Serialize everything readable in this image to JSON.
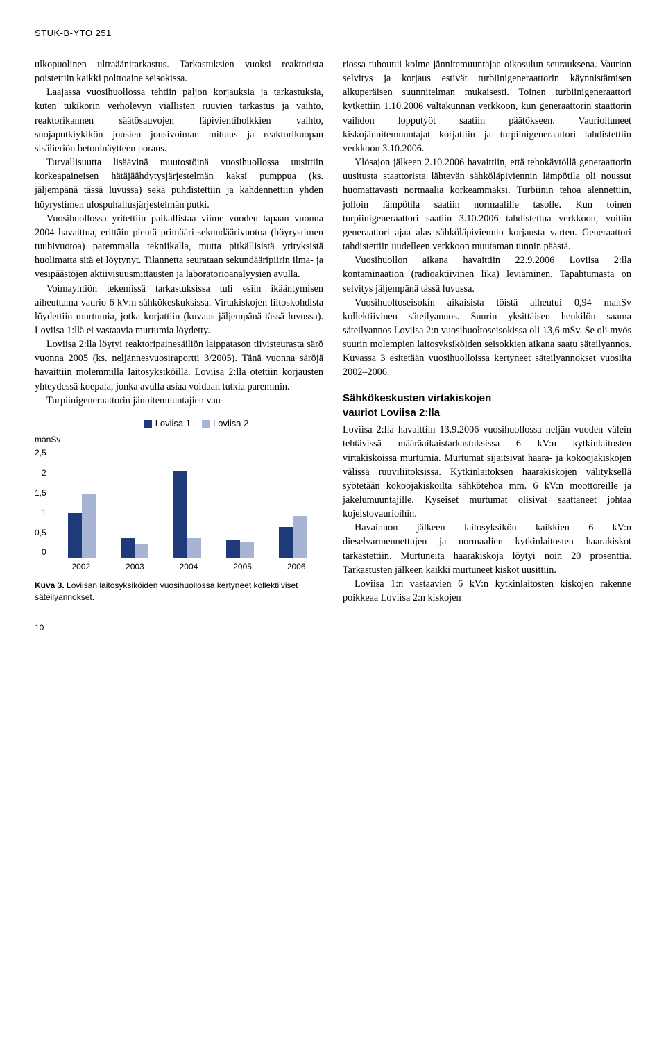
{
  "header_code": "STUK-B-YTO 251",
  "left_col": {
    "p1": "ulkopuolinen ultraäänitarkastus. Tarkastuksien vuoksi reaktorista poistettiin kaikki polttoaine seisokissa.",
    "p2": "Laajassa vuosihuollossa tehtiin paljon korjauksia ja tarkastuksia, kuten tukikorin verholevyn viallisten ruuvien tarkastus ja vaihto, reaktorikannen säätösauvojen läpivientiholkkien vaihto, suojaputkiykikön jousien jousivoiman mittaus ja reaktorikuopan sisälieriön betoninäytteen poraus.",
    "p3": "Turvallisuutta lisäävinä muutostöinä vuosihuollossa uusittiin korkeapaineisen hätäjäähdytysjärjestelmän kaksi pumppua (ks. jäljempänä tässä luvussa) sekä puhdistettiin ja kahdennettiin yhden höyrystimen ulospuhallusjärjestelmän putki.",
    "p4": "Vuosihuollossa yritettiin paikallistaa viime vuoden tapaan vuonna 2004 havaittua, erittäin pientä primääri-sekundäärivuotoa (höyrystimen tuubivuotoa) paremmalla tekniikalla, mutta pitkällisistä yrityksistä huolimatta sitä ei löytynyt. Tilannetta seurataan sekundääripiirin ilma- ja vesipäästöjen aktiivisuusmittausten ja laboratorioanalyysien avulla.",
    "p5": "Voimayhtiön tekemissä tarkastuksissa tuli esiin ikääntymisen aiheuttama vaurio 6 kV:n sähkökeskuksissa. Virtakiskojen liitoskohdista löydettiin murtumia, jotka korjattiin (kuvaus jäljempänä tässä luvussa). Loviisa 1:llä ei vastaavia murtumia löydetty.",
    "p6": "Loviisa 2:lla löytyi reaktoripainesäiliön laippatason tiivisteurasta särö vuonna 2005 (ks. neljännesvuosiraportti 3/2005). Tänä vuonna säröjä havaittiin molemmilla laitosyksiköillä. Loviisa 2:lla otettiin korjausten yhteydessä koepala, jonka avulla asiaa voidaan tutkia paremmin.",
    "p7": "Turpiinigeneraattorin jännitemuuntajien vau-"
  },
  "right_col": {
    "p1": "riossa tuhoutui kolme jännitemuuntajaa oikosulun seurauksena. Vaurion selvitys ja korjaus estivät turbiinigeneraattorin käynnistämisen alkuperäisen suunnitelman mukaisesti. Toinen turbiinigeneraattori kytkettiin 1.10.2006 valtakunnan verkkoon, kun generaattorin staattorin vaihdon lopputyöt saatiin päätökseen. Vaurioituneet kiskojännitemuuntajat korjattiin ja turpiinigeneraattori tahdistettiin verkkoon 3.10.2006.",
    "p2": "Ylösajon jälkeen 2.10.2006 havaittiin, että tehokäytöllä generaattorin uusitusta staattorista lähtevän sähköläpiviennin lämpötila oli noussut huomattavasti normaalia korkeammaksi. Turbiinin tehoa alennettiin, jolloin lämpötila saatiin normaalille tasolle. Kun toinen turpiinigeneraattori saatiin 3.10.2006 tahdistettua verkkoon, voitiin generaattori ajaa alas sähköläpiviennin korjausta varten. Generaattori tahdistettiin uudelleen verkkoon muutaman tunnin päästä.",
    "p3": "Vuosihuollon aikana havaittiin 22.9.2006 Loviisa 2:lla kontaminaation (radioaktiivinen lika) leviäminen. Tapahtumasta on selvitys jäljempänä tässä luvussa.",
    "p4": "Vuosihuoltoseisokín aikaisista töistä aiheutui 0,94 manSv kollektiivinen säteilyannos. Suurin yksittäisen henkilön saama säteilyannos Loviisa 2:n vuosihuoltoseisokissa oli 13,6 mSv. Se oli myös suurin molempien laitosyksiköiden seisokkien aikana saatu säteilyannos. Kuvassa 3 esitetään vuosihuolloissa kertyneet säteilyannokset vuosilta 2002–2006.",
    "subhead_l1": "Sähkökeskusten virtakiskojen",
    "subhead_l2": "vauriot Loviisa 2:lla",
    "p5": "Loviisa 2:lla havaittiin 13.9.2006 vuosihuollossa neljän vuoden välein tehtävissä määräaikaistarkastuksissa 6 kV:n kytkinlaitosten virtakiskoissa murtumia. Murtumat sijaitsivat haara- ja kokoojakiskojen välissä ruuviliitoksissa. Kytkinlaitoksen haarakiskojen välityksellä syötetään kokoojakiskoilta sähkötehoa mm. 6 kV:n moottoreille ja jakelumuuntajille. Kyseiset murtumat olisivat saattaneet johtaa kojeistovaurioihin.",
    "p6": "Havainnon jälkeen laitosyksikön kaikkien 6 kV:n dieselvarmennettujen ja normaalien kytkinlaitosten haarakiskot tarkastettiin. Murtuneita haarakiskoja löytyi noin 20 prosenttia. Tarkastusten jälkeen kaikki murtuneet kiskot uusittiin.",
    "p7": "Loviisa 1:n vastaavien 6 kV:n kytkinlaitosten kiskojen rakenne poikkeaa Loviisa 2:n kiskojen"
  },
  "chart": {
    "type": "bar",
    "ylabel": "manSv",
    "legend": [
      "Loviisa 1",
      "Loviisa 2"
    ],
    "colors": {
      "series1": "#1e3a7b",
      "series2": "#a8b4d4"
    },
    "categories": [
      "2002",
      "2003",
      "2004",
      "2005",
      "2006"
    ],
    "ymax": 2.5,
    "yticks": [
      "2,5",
      "2",
      "1,5",
      "1",
      "0,5",
      "0"
    ],
    "series1": [
      1.0,
      0.45,
      1.95,
      0.4,
      0.7
    ],
    "series2": [
      1.45,
      0.3,
      0.45,
      0.35,
      0.94
    ],
    "caption_bold": "Kuva 3.",
    "caption_rest": " Loviisan laitosyksiköiden vuosihuollossa kertyneet kollektiiviset säteilyannokset."
  },
  "page_number": "10"
}
